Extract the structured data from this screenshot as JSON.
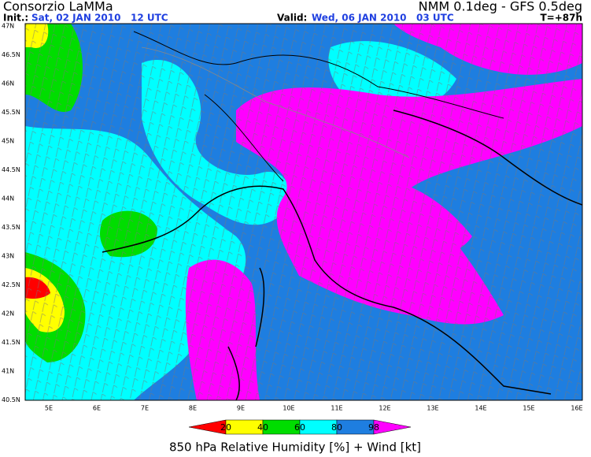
{
  "header": {
    "org": "Consorzio LaMMa",
    "init_label": "Init.:",
    "init": "Sat, 02 JAN 2010   12 UTC",
    "valid_label": "Valid:",
    "valid": "Wed, 06 JAN 2010   03 UTC",
    "model": "NMM 0.1deg - GFS 0.5deg",
    "lead": "T=+87h"
  },
  "map": {
    "lat_labels": [
      "47N",
      "46.5N",
      "46N",
      "45.5N",
      "45N",
      "44.5N",
      "44N",
      "43.5N",
      "43N",
      "42.5N",
      "42N",
      "41.5N",
      "41N",
      "40.5N"
    ],
    "lon_labels": [
      "5E",
      "6E",
      "7E",
      "8E",
      "9E",
      "10E",
      "11E",
      "12E",
      "13E",
      "14E",
      "15E",
      "16E"
    ]
  },
  "colorbar": {
    "labels": [
      20,
      40,
      60,
      80,
      98
    ],
    "colors": [
      "#ff0000",
      "#ffff00",
      "#00dd00",
      "#00ffff",
      "#1e7ee0",
      "#ff00ff"
    ]
  },
  "footer": "850 hPa Relative Humidity [%] + Wind [kt]"
}
